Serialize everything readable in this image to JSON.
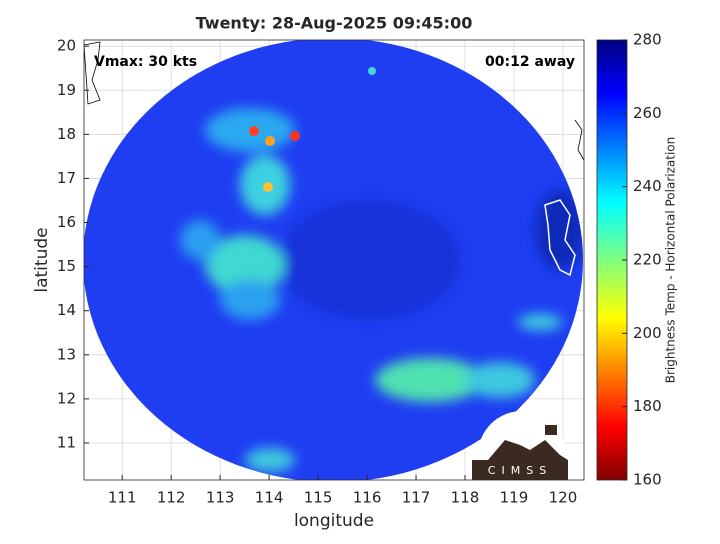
{
  "chart_data": {
    "type": "map",
    "title": "Twenty: 28-Aug-2025 09:45:00",
    "annotations": [
      "Vmax: 30 kts",
      "00:12 away"
    ],
    "x_label": "longitude",
    "y_label": "latitude",
    "xlim": [
      110.22,
      120.43
    ],
    "xticks": [
      111,
      112,
      113,
      114,
      115,
      116,
      117,
      118,
      119,
      120
    ],
    "ylim": [
      10.16,
      20.14
    ],
    "yticks": [
      11,
      12,
      13,
      14,
      15,
      16,
      17,
      18,
      19,
      20
    ],
    "grid": true,
    "colorbar": {
      "label": "Brightness Temp - Horizontal Polarization",
      "lim": [
        160,
        280
      ],
      "ticks": [
        160,
        180,
        200,
        220,
        240,
        260,
        280
      ]
    },
    "logo_text": "CIMSS"
  }
}
